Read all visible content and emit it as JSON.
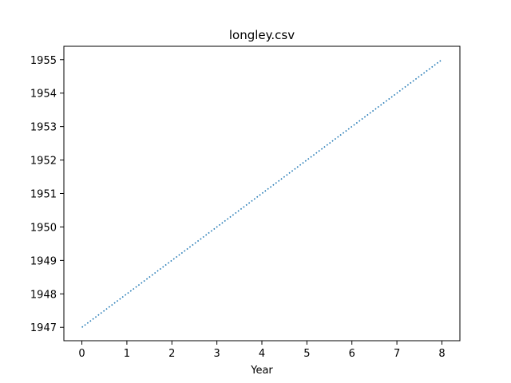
{
  "chart_data": {
    "type": "line",
    "title": "longley.csv",
    "xlabel": "Year",
    "ylabel": "",
    "x": [
      0,
      1,
      2,
      3,
      4,
      5,
      6,
      7,
      8
    ],
    "series": [
      {
        "values": [
          1947,
          1948,
          1949,
          1950,
          1951,
          1952,
          1953,
          1954,
          1955
        ],
        "color": "#1f77b4",
        "linestyle": "dotted"
      }
    ],
    "xlim": [
      -0.4,
      8.4
    ],
    "ylim": [
      1946.6,
      1955.4
    ],
    "xticks": [
      "0",
      "1",
      "2",
      "3",
      "4",
      "5",
      "6",
      "7",
      "8"
    ],
    "yticks": [
      "1947",
      "1948",
      "1949",
      "1950",
      "1951",
      "1952",
      "1953",
      "1954",
      "1955"
    ],
    "grid": false,
    "legend": "none"
  }
}
